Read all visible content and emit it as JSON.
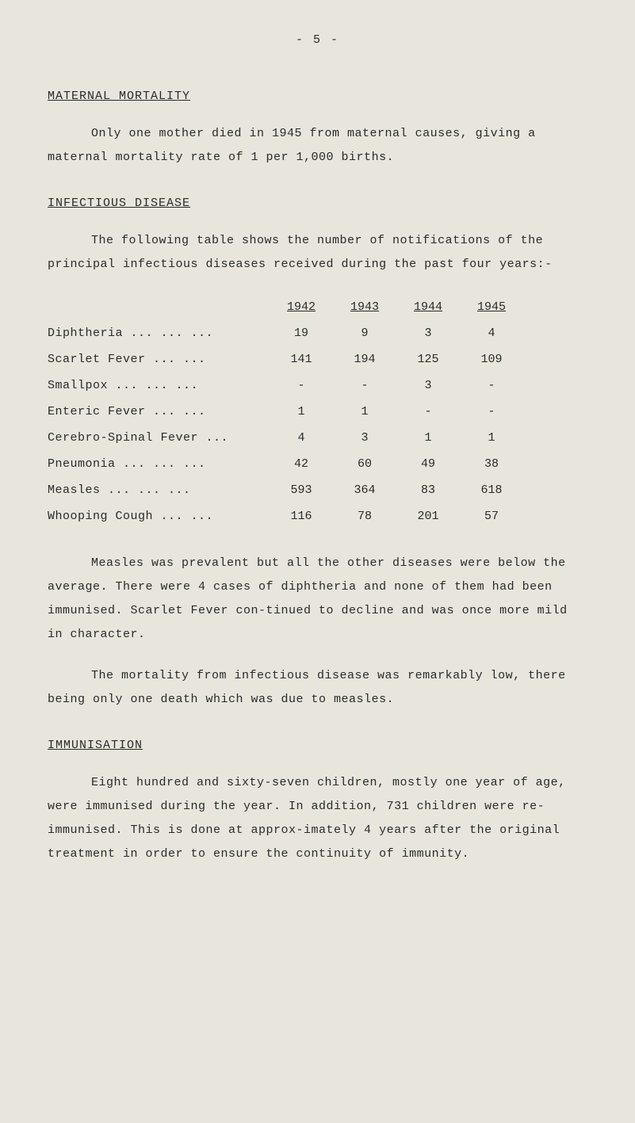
{
  "page_number": "- 5 -",
  "sections": {
    "maternal_mortality": {
      "heading": "MATERNAL MORTALITY",
      "para1": "Only one mother died in 1945 from maternal causes, giving a maternal mortality rate of 1 per 1,000 births."
    },
    "infectious_disease": {
      "heading": "INFECTIOUS DISEASE",
      "intro": "The following table shows the number of notifications of the principal infectious diseases received during the past four years:-",
      "table": {
        "years": [
          "1942",
          "1943",
          "1944",
          "1945"
        ],
        "rows": [
          {
            "label": "Diphtheria   ...  ...  ...",
            "values": [
              "19",
              "9",
              "3",
              "4"
            ]
          },
          {
            "label": "Scarlet Fever     ...  ...",
            "values": [
              "141",
              "194",
              "125",
              "109"
            ]
          },
          {
            "label": "Smallpox     ...  ...  ...",
            "values": [
              "-",
              "-",
              "3",
              "-"
            ]
          },
          {
            "label": "Enteric Fever     ...  ...",
            "values": [
              "1",
              "1",
              "-",
              "-"
            ]
          },
          {
            "label": "Cerebro-Spinal Fever   ...",
            "values": [
              "4",
              "3",
              "1",
              "1"
            ]
          },
          {
            "label": "Pneumonia    ...  ...  ...",
            "values": [
              "42",
              "60",
              "49",
              "38"
            ]
          },
          {
            "label": "Measles      ...  ...  ...",
            "values": [
              "593",
              "364",
              "83",
              "618"
            ]
          },
          {
            "label": "Whooping Cough    ...  ...",
            "values": [
              "116",
              "78",
              "201",
              "57"
            ]
          }
        ]
      },
      "para_after1": "Measles was prevalent but all the other diseases were below the average.  There were 4 cases of diphtheria and none of them had been immunised.  Scarlet Fever con-tinued to decline and was once more mild in character.",
      "para_after2": "The mortality from infectious disease was remarkably low, there being only one death which was due to measles."
    },
    "immunisation": {
      "heading": "IMMUNISATION",
      "para1": "Eight hundred and sixty-seven children, mostly one year of age, were immunised during the year.  In addition, 731 children were re-immunised.  This is done at approx-imately 4 years after the original treatment in order to ensure the continuity of immunity."
    }
  },
  "colors": {
    "background": "#e8e6dc",
    "text": "#2a2a28"
  },
  "typography": {
    "font_family": "Courier New",
    "body_fontsize": 15
  }
}
